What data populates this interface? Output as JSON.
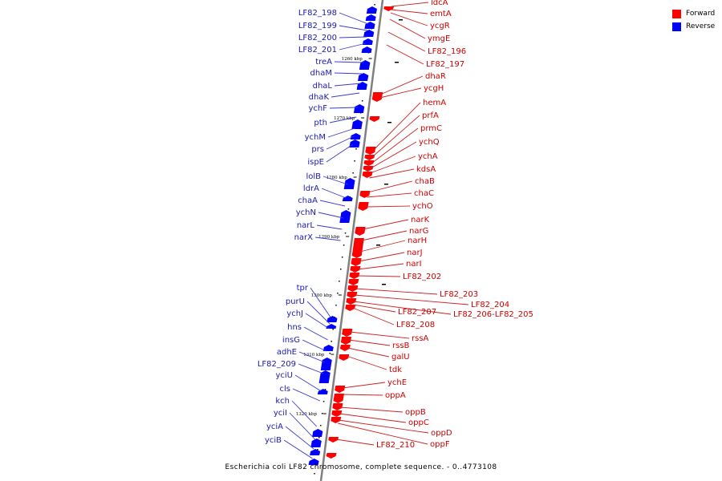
{
  "legend": [
    {
      "label": "Forward",
      "color": "#ff0000"
    },
    {
      "label": "Reverse",
      "color": "#0000ff"
    }
  ],
  "caption": "Escherichia coli LF82 chromosome, complete sequence. - 0..4773108",
  "ticks": [
    "1260 kbp",
    "1270 kbp",
    "1280 kbp",
    "1290 kbp",
    "1300 kbp",
    "1310 kbp",
    "1320 kbp"
  ],
  "reverse_labels": [
    "LF82_198",
    "LF82_199",
    "LF82_200",
    "LF82_201",
    "treA",
    "dhaM",
    "dhaL",
    "dhaK",
    "ychF",
    "pth",
    "ychM",
    "prs",
    "ispE",
    "lolB",
    "ldrA",
    "chaA",
    "ychN",
    "narL",
    "narX",
    "tpr",
    "purU",
    "ychJ",
    "hns",
    "insG",
    "adhE",
    "LF82_209",
    "yciU",
    "cls",
    "kch",
    "yciI",
    "yciA",
    "yciB"
  ],
  "forward_labels": [
    "ldcA",
    "emtA",
    "ycgR",
    "ymgE",
    "LF82_196",
    "LF82_197",
    "dhaR",
    "ycgH",
    "hemA",
    "prfA",
    "prmC",
    "ychQ",
    "ychA",
    "kdsA",
    "chaB",
    "chaC",
    "ychO",
    "narK",
    "narG",
    "narH",
    "narJ",
    "narI",
    "LF82_202",
    "LF82_203",
    "LF82_204",
    "LF82_206-LF82_205",
    "LF82_207",
    "LF82_208",
    "rssA",
    "rssB",
    "galU",
    "tdk",
    "ychE",
    "oppA",
    "oppB",
    "oppC",
    "oppD",
    "oppF",
    "LF82_210"
  ],
  "colors": {
    "forward": "#ff0000",
    "reverse": "#0000ff",
    "forward_label": "#cc0000",
    "reverse_label": "#1a1aaa",
    "backbone": "#7f7f7f"
  }
}
